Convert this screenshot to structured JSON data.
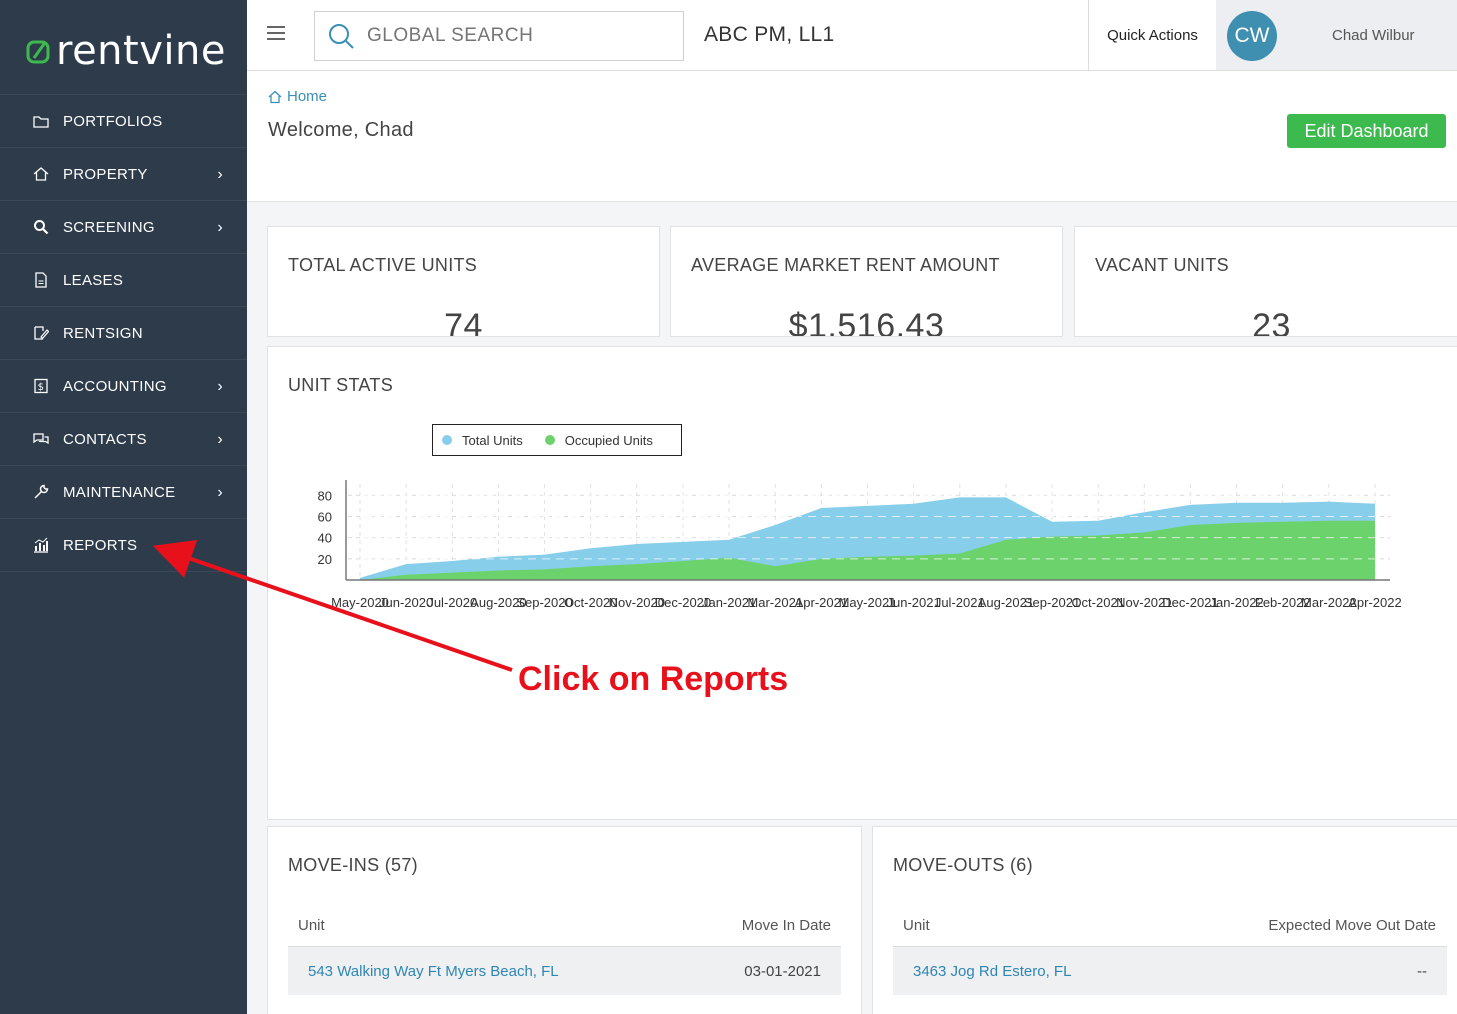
{
  "brand": {
    "name": "rentvine",
    "logo_color": "#3dba4e"
  },
  "sidebar": {
    "items": [
      {
        "label": "PORTFOLIOS",
        "icon": "folder-icon",
        "has_submenu": false
      },
      {
        "label": "PROPERTY",
        "icon": "home-icon",
        "has_submenu": true
      },
      {
        "label": "SCREENING",
        "icon": "search-icon",
        "has_submenu": true
      },
      {
        "label": "LEASES",
        "icon": "document-icon",
        "has_submenu": false
      },
      {
        "label": "RENTSIGN",
        "icon": "sign-icon",
        "has_submenu": false
      },
      {
        "label": "ACCOUNTING",
        "icon": "dollar-icon",
        "has_submenu": true
      },
      {
        "label": "CONTACTS",
        "icon": "chat-icon",
        "has_submenu": true
      },
      {
        "label": "MAINTENANCE",
        "icon": "wrench-icon",
        "has_submenu": true
      },
      {
        "label": "REPORTS",
        "icon": "chart-icon",
        "has_submenu": false
      }
    ],
    "chevron": "›"
  },
  "topbar": {
    "search_placeholder": "GLOBAL SEARCH",
    "company": "ABC PM, LL1",
    "quick_actions": "Quick Actions",
    "avatar_initials": "CW",
    "user_name": "Chad Wilbur"
  },
  "header": {
    "breadcrumb": "Home",
    "welcome": "Welcome, Chad",
    "edit_button": "Edit Dashboard"
  },
  "stats": {
    "total_active_units": {
      "label": "TOTAL ACTIVE UNITS",
      "value": "74"
    },
    "avg_market_rent": {
      "label": "AVERAGE MARKET RENT AMOUNT",
      "value": "$1,516.43"
    },
    "vacant_units": {
      "label": "VACANT UNITS",
      "value": "23"
    }
  },
  "unit_stats": {
    "title": "UNIT STATS"
  },
  "chart_data": {
    "type": "area",
    "title": "",
    "xlabel": "",
    "ylabel": "",
    "categories": [
      "May-2020",
      "Jun-2020",
      "Jul-2020",
      "Aug-2020",
      "Sep-2020",
      "Oct-2020",
      "Nov-2020",
      "Dec-2020",
      "Jan-2021",
      "Mar-2021",
      "Apr-2021",
      "May-2021",
      "Jun-2021",
      "Jul-2021",
      "Aug-2021",
      "Sep-2021",
      "Oct-2021",
      "Nov-2021",
      "Dec-2021",
      "Jan-2022",
      "Feb-2022",
      "Mar-2022",
      "Apr-2022"
    ],
    "series": [
      {
        "name": "Total Units",
        "color": "#87ceeb",
        "values": [
          2,
          15,
          18,
          22,
          24,
          30,
          34,
          36,
          38,
          52,
          68,
          70,
          72,
          78,
          78,
          55,
          56,
          64,
          71,
          73,
          73,
          74,
          72
        ]
      },
      {
        "name": "Occupied Units",
        "color": "#6cd36c",
        "values": [
          0,
          5,
          7,
          9,
          10,
          13,
          15,
          18,
          21,
          13,
          20,
          22,
          23,
          25,
          38,
          41,
          42,
          45,
          52,
          54,
          55,
          56,
          56
        ]
      }
    ],
    "yticks": [
      20,
      40,
      60,
      80
    ],
    "ylim": [
      0,
      85
    ],
    "grid": true,
    "legend": "top-left"
  },
  "move_ins": {
    "title": "MOVE-INS (57)",
    "col_unit": "Unit",
    "col_date": "Move In Date",
    "rows": [
      {
        "unit": "543 Walking Way Ft Myers Beach, FL",
        "date": "03-01-2021"
      }
    ]
  },
  "move_outs": {
    "title": "MOVE-OUTS (6)",
    "col_unit": "Unit",
    "col_date": "Expected Move Out Date",
    "rows": [
      {
        "unit": "3463 Jog Rd Estero, FL",
        "date": "--"
      }
    ]
  },
  "annotation": {
    "text": "Click on Reports",
    "color": "#e8111b"
  }
}
